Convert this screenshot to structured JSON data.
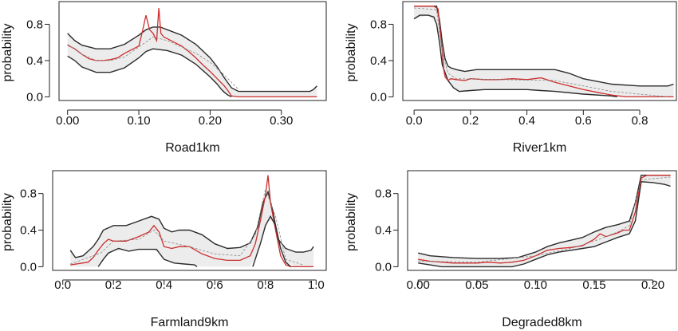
{
  "colors": {
    "band_fill": "#ececec",
    "bound_line": "#2b2b2b",
    "mean_line": "#cc2e2e",
    "ref_line": "#888888"
  },
  "chart_data": [
    {
      "type": "line",
      "xlabel": "Road1km",
      "ylabel": "probability",
      "xlim": [
        -0.012,
        0.363
      ],
      "ylim": [
        -0.04,
        1.05
      ],
      "xticks": [
        0.0,
        0.1,
        0.2,
        0.3
      ],
      "xtick_labels": [
        "0.00",
        "0.10",
        "0.20",
        "0.30"
      ],
      "yticks": [
        0.0,
        0.4,
        0.8
      ],
      "ytick_labels": [
        "0.0",
        "0.4",
        "0.8"
      ],
      "series": [
        {
          "role": "upper",
          "x": [
            0.0,
            0.01,
            0.02,
            0.04,
            0.06,
            0.08,
            0.1,
            0.11,
            0.12,
            0.13,
            0.14,
            0.16,
            0.18,
            0.2,
            0.21,
            0.22,
            0.23,
            0.24,
            0.26,
            0.28,
            0.3,
            0.32,
            0.34,
            0.345,
            0.35
          ],
          "y": [
            0.7,
            0.62,
            0.57,
            0.53,
            0.53,
            0.58,
            0.68,
            0.74,
            0.77,
            0.77,
            0.74,
            0.68,
            0.58,
            0.43,
            0.33,
            0.21,
            0.1,
            0.06,
            0.06,
            0.06,
            0.06,
            0.06,
            0.06,
            0.08,
            0.12
          ]
        },
        {
          "role": "lower",
          "x": [
            0.0,
            0.01,
            0.02,
            0.04,
            0.06,
            0.08,
            0.1,
            0.11,
            0.12,
            0.13,
            0.14,
            0.16,
            0.18,
            0.2,
            0.21,
            0.215,
            0.22,
            0.225,
            0.23
          ],
          "y": [
            0.45,
            0.4,
            0.33,
            0.27,
            0.27,
            0.32,
            0.43,
            0.5,
            0.53,
            0.52,
            0.51,
            0.46,
            0.36,
            0.22,
            0.14,
            0.09,
            0.05,
            0.02,
            0.0
          ]
        },
        {
          "role": "mean",
          "x": [
            0.0,
            0.01,
            0.02,
            0.03,
            0.04,
            0.05,
            0.06,
            0.07,
            0.08,
            0.09,
            0.1,
            0.105,
            0.11,
            0.115,
            0.12,
            0.125,
            0.128,
            0.131,
            0.135,
            0.14,
            0.15,
            0.16,
            0.17,
            0.18,
            0.19,
            0.2,
            0.21,
            0.22,
            0.225,
            0.23,
            0.24,
            0.26,
            0.28,
            0.3,
            0.32,
            0.34,
            0.35
          ],
          "y": [
            0.57,
            0.53,
            0.47,
            0.42,
            0.4,
            0.4,
            0.41,
            0.43,
            0.48,
            0.52,
            0.56,
            0.72,
            0.9,
            0.74,
            0.7,
            0.62,
            0.98,
            0.7,
            0.66,
            0.64,
            0.6,
            0.56,
            0.5,
            0.43,
            0.35,
            0.28,
            0.2,
            0.12,
            0.07,
            0.01,
            0.0,
            0.0,
            0.0,
            0.0,
            0.0,
            0.0,
            0.0
          ]
        },
        {
          "role": "reference",
          "x": [
            0.0,
            0.02,
            0.04,
            0.06,
            0.08,
            0.1,
            0.12,
            0.14,
            0.16,
            0.18,
            0.2,
            0.22,
            0.24
          ],
          "y": [
            0.58,
            0.47,
            0.4,
            0.4,
            0.44,
            0.55,
            0.66,
            0.62,
            0.55,
            0.48,
            0.38,
            0.24,
            0.08
          ]
        }
      ]
    },
    {
      "type": "line",
      "xlabel": "River1km",
      "ylabel": "probability",
      "xlim": [
        -0.04,
        0.93
      ],
      "ylim": [
        -0.04,
        1.05
      ],
      "xticks": [
        0.0,
        0.2,
        0.4,
        0.6,
        0.8
      ],
      "xtick_labels": [
        "0.0",
        "0.2",
        "0.4",
        "0.6",
        "0.8"
      ],
      "yticks": [
        0.0,
        0.4,
        0.8
      ],
      "ytick_labels": [
        "0.0",
        "0.4",
        "0.8"
      ],
      "series": [
        {
          "role": "upper",
          "x": [
            0.0,
            0.05,
            0.08,
            0.09,
            0.1,
            0.11,
            0.12,
            0.13,
            0.15,
            0.18,
            0.22,
            0.3,
            0.4,
            0.5,
            0.55,
            0.6,
            0.7,
            0.8,
            0.85,
            0.9,
            0.92
          ],
          "y": [
            1.0,
            1.0,
            1.0,
            0.85,
            0.6,
            0.42,
            0.34,
            0.32,
            0.3,
            0.28,
            0.3,
            0.3,
            0.3,
            0.3,
            0.26,
            0.2,
            0.14,
            0.12,
            0.12,
            0.12,
            0.14
          ]
        },
        {
          "role": "lower",
          "x": [
            0.0,
            0.02,
            0.05,
            0.07,
            0.08,
            0.09,
            0.1,
            0.12,
            0.14,
            0.16,
            0.2,
            0.25,
            0.3,
            0.4,
            0.45,
            0.5,
            0.6,
            0.7,
            0.72
          ],
          "y": [
            0.86,
            0.9,
            0.9,
            0.88,
            0.8,
            0.6,
            0.35,
            0.18,
            0.1,
            0.06,
            0.07,
            0.08,
            0.08,
            0.08,
            0.07,
            0.06,
            0.03,
            0.01,
            0.0
          ]
        },
        {
          "role": "mean",
          "x": [
            0.0,
            0.07,
            0.085,
            0.09,
            0.1,
            0.105,
            0.11,
            0.12,
            0.13,
            0.15,
            0.18,
            0.2,
            0.25,
            0.3,
            0.35,
            0.4,
            0.45,
            0.48,
            0.5,
            0.55,
            0.6,
            0.65,
            0.7,
            0.75,
            0.8,
            0.85,
            0.9,
            0.92
          ],
          "y": [
            1.0,
            1.0,
            0.97,
            0.8,
            0.5,
            0.3,
            0.22,
            0.18,
            0.2,
            0.19,
            0.18,
            0.2,
            0.19,
            0.19,
            0.2,
            0.19,
            0.21,
            0.18,
            0.16,
            0.12,
            0.08,
            0.05,
            0.02,
            0.0,
            0.0,
            0.0,
            0.0,
            0.0
          ]
        },
        {
          "role": "reference",
          "x": [
            0.0,
            0.08,
            0.1,
            0.12,
            0.15,
            0.3,
            0.5,
            0.7,
            0.9
          ],
          "y": [
            0.98,
            0.96,
            0.5,
            0.26,
            0.2,
            0.19,
            0.18,
            0.06,
            0.0
          ]
        }
      ]
    },
    {
      "type": "line",
      "xlabel": "Farmland9km",
      "ylabel": "probability",
      "xlim": [
        -0.04,
        1.04
      ],
      "ylim": [
        -0.04,
        1.05
      ],
      "xticks": [
        0.0,
        0.2,
        0.4,
        0.6,
        0.8,
        1.0
      ],
      "xtick_labels": [
        "0.0",
        "0.2",
        "0.4",
        "0.6",
        "0.8",
        "1.0"
      ],
      "yticks": [
        0.0,
        0.4,
        0.8
      ],
      "ytick_labels": [
        "0.0",
        "0.4",
        "0.8"
      ],
      "series": [
        {
          "role": "upper",
          "x": [
            0.03,
            0.05,
            0.08,
            0.1,
            0.12,
            0.14,
            0.16,
            0.2,
            0.25,
            0.3,
            0.35,
            0.38,
            0.4,
            0.43,
            0.46,
            0.5,
            0.55,
            0.6,
            0.65,
            0.7,
            0.74,
            0.77,
            0.79,
            0.81,
            0.83,
            0.85,
            0.88,
            0.92,
            0.95,
            0.98,
            0.99
          ],
          "y": [
            0.18,
            0.1,
            0.12,
            0.17,
            0.22,
            0.3,
            0.4,
            0.45,
            0.45,
            0.5,
            0.55,
            0.52,
            0.42,
            0.38,
            0.4,
            0.4,
            0.35,
            0.25,
            0.2,
            0.21,
            0.26,
            0.44,
            0.7,
            0.82,
            0.6,
            0.3,
            0.2,
            0.16,
            0.16,
            0.18,
            0.22
          ]
        },
        {
          "role": "lower",
          "x": [
            0.14,
            0.16,
            0.18,
            0.22,
            0.26,
            0.3,
            0.35,
            0.37,
            0.4,
            0.44,
            0.48,
            0.52,
            0.53
          ],
          "y": [
            0.0,
            0.08,
            0.15,
            0.2,
            0.17,
            0.19,
            0.19,
            0.19,
            0.08,
            0.04,
            0.03,
            0.02,
            0.0
          ]
        },
        {
          "role": "mean",
          "x": [
            0.03,
            0.1,
            0.12,
            0.14,
            0.16,
            0.18,
            0.2,
            0.25,
            0.3,
            0.34,
            0.36,
            0.38,
            0.4,
            0.43,
            0.46,
            0.5,
            0.55,
            0.6,
            0.65,
            0.7,
            0.74,
            0.76,
            0.78,
            0.8,
            0.81,
            0.82,
            0.84,
            0.86,
            0.88,
            0.9,
            0.95,
            0.99
          ],
          "y": [
            0.02,
            0.05,
            0.1,
            0.18,
            0.25,
            0.3,
            0.28,
            0.28,
            0.33,
            0.38,
            0.45,
            0.38,
            0.22,
            0.2,
            0.22,
            0.22,
            0.14,
            0.09,
            0.07,
            0.07,
            0.12,
            0.25,
            0.5,
            0.78,
            1.0,
            0.7,
            0.4,
            0.12,
            0.02,
            0.0,
            0.0,
            0.0
          ]
        },
        {
          "role": "lower",
          "x": [
            0.75,
            0.78,
            0.8,
            0.82,
            0.84,
            0.86,
            0.88,
            0.9
          ],
          "y": [
            0.0,
            0.25,
            0.45,
            0.55,
            0.45,
            0.2,
            0.05,
            0.0
          ]
        },
        {
          "role": "reference",
          "x": [
            0.03,
            0.15,
            0.2,
            0.3,
            0.36,
            0.4,
            0.5,
            0.6,
            0.7,
            0.76,
            0.8,
            0.84,
            0.88,
            0.95
          ],
          "y": [
            0.03,
            0.15,
            0.28,
            0.3,
            0.4,
            0.28,
            0.22,
            0.14,
            0.12,
            0.35,
            0.85,
            0.55,
            0.08,
            0.02
          ]
        }
      ]
    },
    {
      "type": "line",
      "xlabel": "Degraded8km",
      "ylabel": "probability",
      "xlim": [
        -0.009,
        0.22
      ],
      "ylim": [
        -0.04,
        1.05
      ],
      "xticks": [
        0.0,
        0.05,
        0.1,
        0.15,
        0.2
      ],
      "xtick_labels": [
        "0.00",
        "0.05",
        "0.10",
        "0.15",
        "0.20"
      ],
      "yticks": [
        0.0,
        0.4,
        0.8
      ],
      "ytick_labels": [
        "0.0",
        "0.4",
        "0.8"
      ],
      "series": [
        {
          "role": "upper",
          "x": [
            0.0,
            0.01,
            0.03,
            0.05,
            0.07,
            0.085,
            0.1,
            0.11,
            0.12,
            0.13,
            0.14,
            0.15,
            0.16,
            0.17,
            0.18,
            0.185,
            0.19,
            0.2,
            0.21,
            0.215
          ],
          "y": [
            0.15,
            0.12,
            0.1,
            0.09,
            0.09,
            0.1,
            0.16,
            0.22,
            0.26,
            0.29,
            0.32,
            0.38,
            0.43,
            0.46,
            0.5,
            0.7,
            1.0,
            1.0,
            1.0,
            1.0
          ]
        },
        {
          "role": "lower",
          "x": [
            0.0,
            0.01,
            0.02,
            0.03,
            0.05,
            0.07,
            0.08,
            0.09,
            0.1,
            0.11,
            0.12,
            0.13,
            0.14,
            0.15,
            0.16,
            0.17,
            0.18,
            0.185,
            0.19,
            0.2,
            0.21,
            0.215
          ],
          "y": [
            0.04,
            0.02,
            0.0,
            0.0,
            0.0,
            0.0,
            0.0,
            0.03,
            0.08,
            0.13,
            0.16,
            0.18,
            0.2,
            0.22,
            0.27,
            0.32,
            0.36,
            0.5,
            0.93,
            0.92,
            0.9,
            0.88
          ]
        },
        {
          "role": "mean",
          "x": [
            0.0,
            0.01,
            0.02,
            0.03,
            0.04,
            0.05,
            0.06,
            0.07,
            0.08,
            0.09,
            0.1,
            0.11,
            0.12,
            0.13,
            0.14,
            0.15,
            0.155,
            0.16,
            0.17,
            0.175,
            0.18,
            0.185,
            0.19,
            0.195,
            0.2,
            0.215
          ],
          "y": [
            0.08,
            0.06,
            0.05,
            0.04,
            0.04,
            0.04,
            0.05,
            0.04,
            0.05,
            0.07,
            0.12,
            0.18,
            0.2,
            0.21,
            0.23,
            0.3,
            0.36,
            0.33,
            0.37,
            0.4,
            0.4,
            0.6,
            0.97,
            1.0,
            1.0,
            1.0
          ]
        },
        {
          "role": "reference",
          "x": [
            0.0,
            0.05,
            0.1,
            0.13,
            0.15,
            0.17,
            0.18,
            0.19,
            0.215
          ],
          "y": [
            0.06,
            0.05,
            0.12,
            0.2,
            0.28,
            0.38,
            0.45,
            0.95,
            0.98
          ]
        }
      ]
    }
  ]
}
